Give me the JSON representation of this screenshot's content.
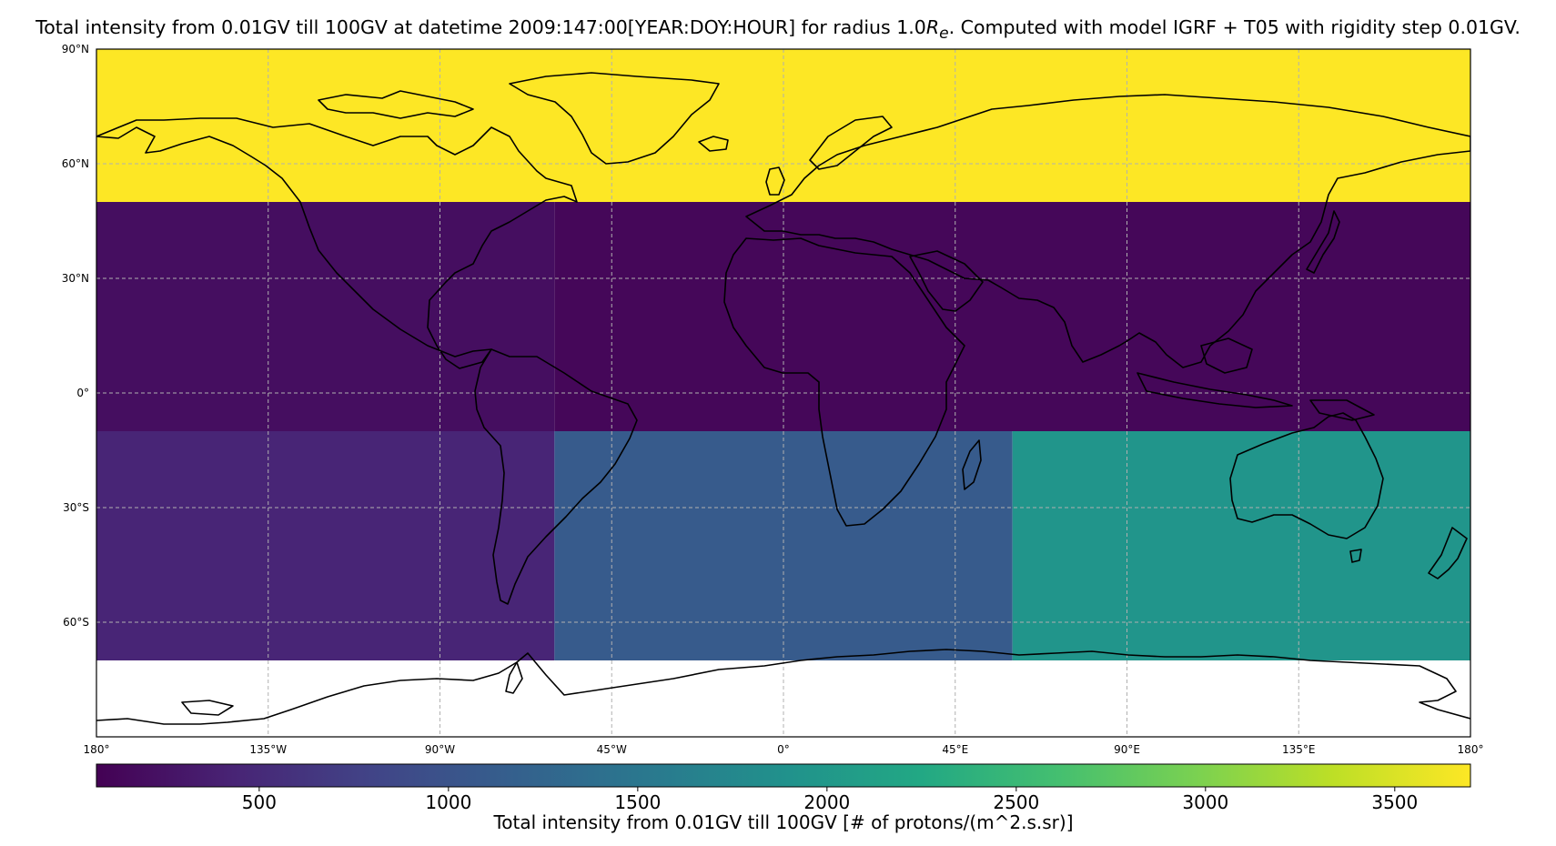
{
  "title": {
    "prefix": "Total intensity from 0.01GV till 100GV at datetime 2009:147:00[YEAR:DOY:HOUR] for radius 1.0",
    "r_symbol": "R",
    "r_sub": "e",
    "suffix": ". Computed with model IGRF + T05 with rigidity step 0.01GV."
  },
  "colors": {
    "viridis": [
      "#440154",
      "#482475",
      "#414487",
      "#355f8d",
      "#2a788e",
      "#21918c",
      "#22a884",
      "#44bf70",
      "#7ad151",
      "#bddf26",
      "#fde725"
    ],
    "grid": "#b0b0b0",
    "coast": "#000000"
  },
  "axes": {
    "lat_ticks": [
      "90°N",
      "60°N",
      "30°N",
      "0°",
      "30°S",
      "60°S"
    ],
    "lon_ticks": [
      "180°",
      "135°W",
      "90°W",
      "45°W",
      "0°",
      "45°E",
      "90°E",
      "135°E",
      "180°"
    ]
  },
  "chart_data": {
    "type": "heatmap",
    "projection": "PlateCarree",
    "value_range": [
      70,
      3700
    ],
    "cells": [
      {
        "lon": [
          -180,
          180
        ],
        "lat": [
          50,
          90
        ],
        "value": 3700
      },
      {
        "lon": [
          -180,
          -60
        ],
        "lat": [
          -10,
          50
        ],
        "value": 200
      },
      {
        "lon": [
          -60,
          180
        ],
        "lat": [
          -10,
          50
        ],
        "value": 130
      },
      {
        "lon": [
          -180,
          -60
        ],
        "lat": [
          -70,
          -10
        ],
        "value": 450
      },
      {
        "lon": [
          -60,
          60
        ],
        "lat": [
          -70,
          -10
        ],
        "value": 1100
      },
      {
        "lon": [
          60,
          180
        ],
        "lat": [
          -70,
          -10
        ],
        "value": 1950
      }
    ],
    "no_data_region": {
      "lat": [
        -90,
        -70
      ]
    }
  },
  "colorbar": {
    "ticks": [
      "500",
      "1000",
      "1500",
      "2000",
      "2500",
      "3000",
      "3500"
    ],
    "tick_values": [
      500,
      1000,
      1500,
      2000,
      2500,
      3000,
      3500
    ],
    "label": "Total intensity from 0.01GV till 100GV [# of protons/(m^2.s.sr)]"
  }
}
